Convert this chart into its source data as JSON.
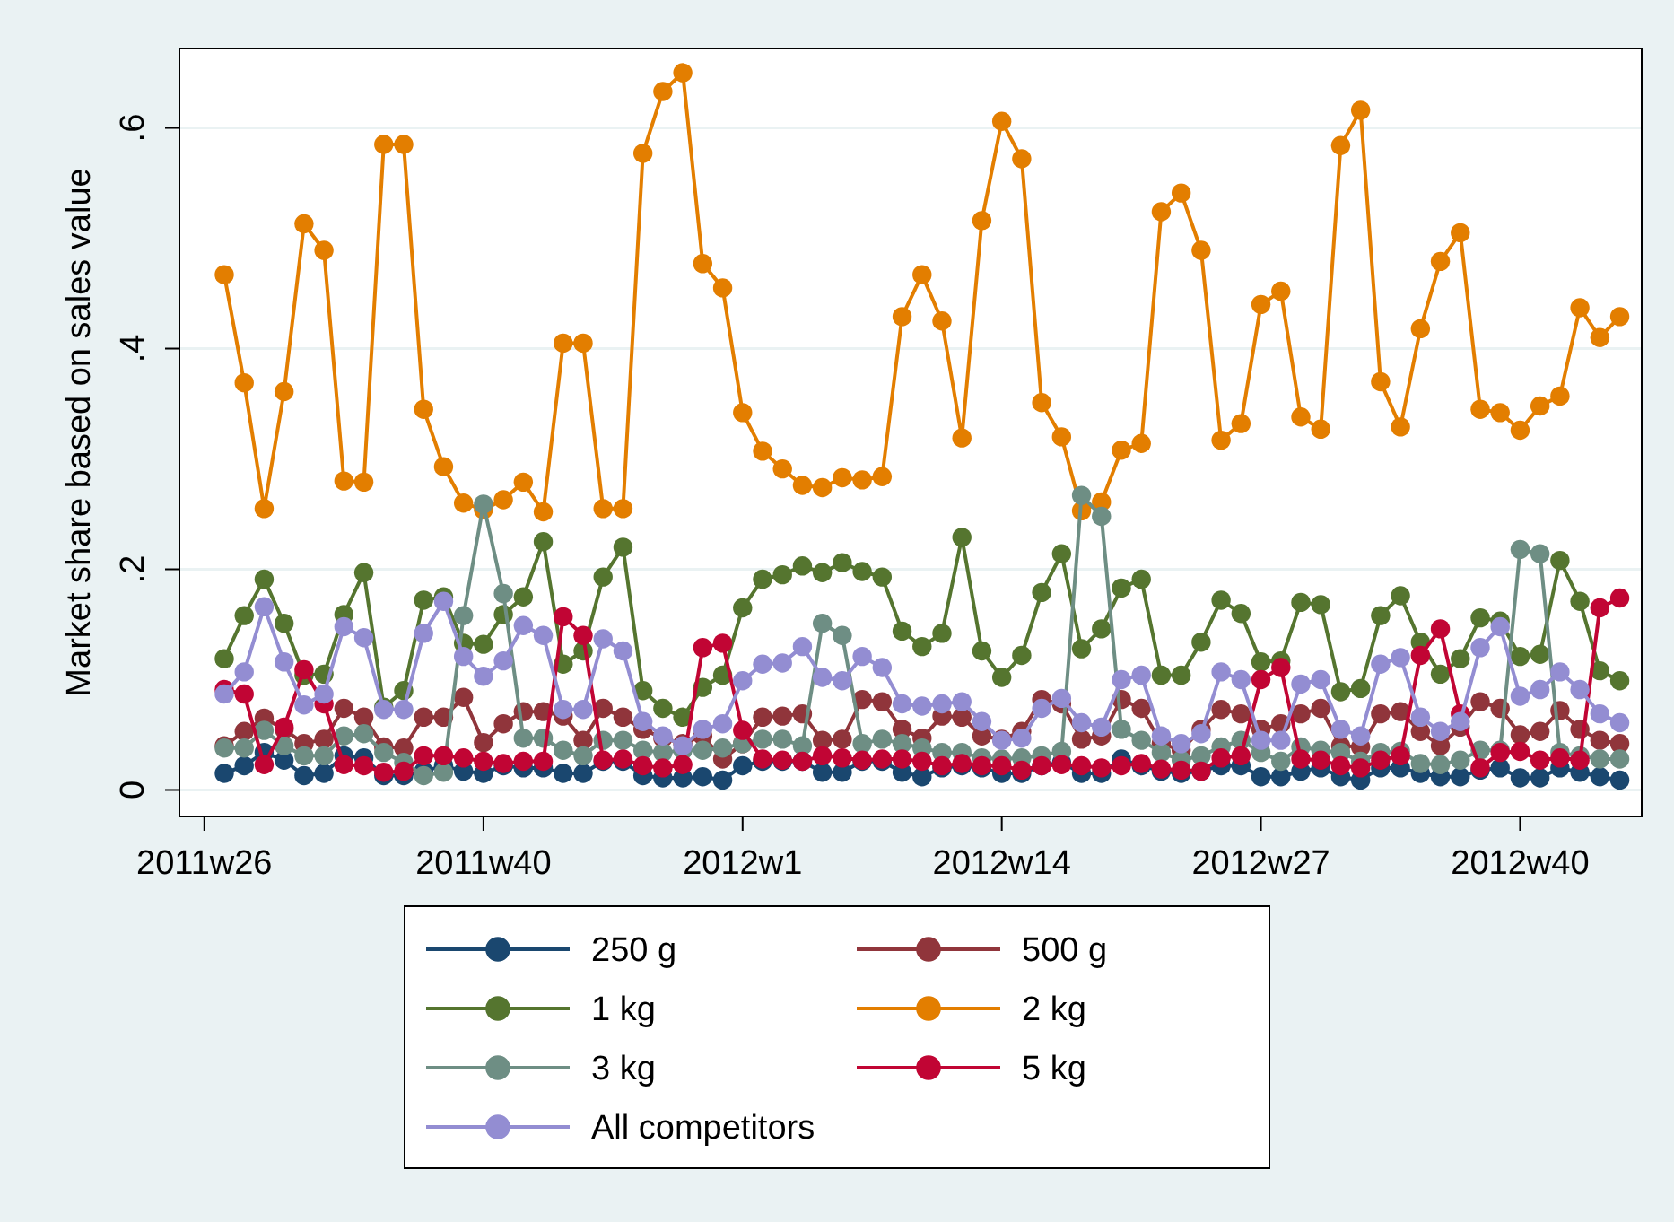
{
  "chart_data": {
    "type": "line",
    "ylabel": "Market share based on sales value",
    "marker": "circle",
    "grid": "y",
    "legend": "bottom",
    "categories": [
      "2011w26",
      null,
      null,
      null,
      null,
      null,
      null,
      null,
      null,
      null,
      null,
      null,
      null,
      null,
      "2011w40",
      null,
      null,
      null,
      null,
      null,
      null,
      null,
      null,
      null,
      null,
      null,
      null,
      "2012w1",
      null,
      null,
      null,
      null,
      null,
      null,
      null,
      null,
      null,
      null,
      null,
      null,
      "2012w14",
      null,
      null,
      null,
      null,
      null,
      null,
      null,
      null,
      null,
      null,
      null,
      null,
      "2012w27",
      null,
      null,
      null,
      null,
      null,
      null,
      null,
      null,
      null,
      null,
      null,
      null,
      "2012w40",
      null,
      null,
      null,
      null,
      null
    ],
    "ylim": [
      -0.024,
      0.672
    ],
    "yticks": [
      {
        "value": 0,
        "label": "0"
      },
      {
        "value": 0.2,
        "label": ".2"
      },
      {
        "value": 0.4,
        "label": ".4"
      },
      {
        "value": 0.6,
        "label": ".6"
      }
    ],
    "series": [
      {
        "name": "250 g",
        "color": "#1a476f",
        "values": [
          null,
          0.015,
          0.022,
          0.034,
          0.027,
          0.013,
          0.015,
          0.031,
          0.029,
          0.013,
          0.013,
          0.017,
          0.022,
          0.017,
          0.015,
          0.022,
          0.02,
          0.02,
          0.015,
          0.015,
          0.026,
          0.026,
          0.013,
          0.011,
          0.011,
          0.012,
          0.009,
          0.022,
          0.026,
          0.026,
          0.026,
          0.016,
          0.016,
          0.026,
          0.026,
          0.016,
          0.012,
          0.02,
          0.022,
          0.02,
          0.015,
          0.015,
          0.022,
          0.025,
          0.015,
          0.015,
          0.028,
          0.022,
          0.017,
          0.015,
          0.017,
          0.022,
          0.022,
          0.012,
          0.012,
          0.017,
          0.02,
          0.012,
          0.009,
          0.02,
          0.02,
          0.015,
          0.012,
          0.012,
          0.018,
          0.02,
          0.011,
          0.011,
          0.02,
          0.016,
          0.012,
          0.009
        ]
      },
      {
        "name": "500 g",
        "color": "#90353b",
        "values": [
          null,
          0.04,
          0.053,
          0.065,
          0.055,
          0.042,
          0.046,
          0.074,
          0.066,
          0.039,
          0.038,
          0.066,
          0.066,
          0.084,
          0.043,
          0.06,
          0.071,
          0.071,
          0.067,
          0.045,
          0.074,
          0.066,
          0.055,
          0.047,
          0.042,
          0.049,
          0.028,
          0.042,
          0.066,
          0.067,
          0.069,
          0.045,
          0.046,
          0.082,
          0.08,
          0.055,
          0.047,
          0.067,
          0.066,
          0.049,
          0.046,
          0.053,
          0.082,
          0.078,
          0.046,
          0.049,
          0.082,
          0.074,
          0.042,
          0.036,
          0.055,
          0.073,
          0.069,
          0.055,
          0.06,
          0.069,
          0.074,
          0.04,
          0.039,
          0.069,
          0.071,
          0.053,
          0.04,
          0.057,
          0.08,
          0.074,
          0.05,
          0.053,
          0.072,
          0.055,
          0.045,
          0.042
        ]
      },
      {
        "name": "1 kg",
        "color": "#55752f",
        "values": [
          null,
          0.119,
          0.158,
          0.191,
          0.151,
          0.104,
          0.105,
          0.159,
          0.197,
          0.075,
          0.09,
          0.172,
          0.175,
          0.133,
          0.132,
          0.159,
          0.175,
          0.225,
          0.114,
          0.126,
          0.193,
          0.22,
          0.09,
          0.074,
          0.066,
          0.093,
          0.104,
          0.165,
          0.191,
          0.195,
          0.203,
          0.197,
          0.206,
          0.198,
          0.193,
          0.144,
          0.13,
          0.142,
          0.229,
          0.126,
          0.102,
          0.122,
          0.179,
          0.214,
          0.128,
          0.146,
          0.183,
          0.191,
          0.104,
          0.104,
          0.134,
          0.172,
          0.16,
          0.116,
          0.117,
          0.17,
          0.168,
          0.089,
          0.092,
          0.158,
          0.176,
          0.134,
          0.105,
          0.119,
          0.156,
          0.153,
          0.121,
          0.123,
          0.208,
          0.171,
          0.108,
          0.099
        ]
      },
      {
        "name": "2 kg",
        "color": "#e37e00",
        "values": [
          null,
          0.467,
          0.369,
          0.255,
          0.361,
          0.513,
          0.489,
          0.28,
          0.279,
          0.585,
          0.585,
          0.345,
          0.293,
          0.26,
          0.254,
          0.263,
          0.279,
          0.252,
          0.405,
          0.405,
          0.255,
          0.255,
          0.577,
          0.633,
          0.65,
          0.477,
          0.455,
          0.342,
          0.307,
          0.291,
          0.276,
          0.274,
          0.283,
          0.281,
          0.284,
          0.429,
          0.467,
          0.425,
          0.319,
          0.516,
          0.606,
          0.572,
          0.351,
          0.32,
          0.253,
          0.261,
          0.308,
          0.314,
          0.524,
          0.541,
          0.489,
          0.317,
          0.332,
          0.44,
          0.452,
          0.338,
          0.327,
          0.584,
          0.616,
          0.37,
          0.329,
          0.418,
          0.479,
          0.505,
          0.345,
          0.342,
          0.326,
          0.348,
          0.357,
          0.437,
          0.41,
          0.429
        ]
      },
      {
        "name": "3 kg",
        "color": "#6e8e84",
        "values": [
          null,
          0.038,
          0.038,
          0.054,
          0.04,
          0.031,
          0.031,
          0.049,
          0.051,
          0.034,
          0.025,
          0.013,
          0.016,
          0.158,
          0.259,
          0.178,
          0.047,
          0.047,
          0.036,
          0.031,
          0.045,
          0.045,
          0.036,
          0.034,
          0.036,
          0.036,
          0.038,
          0.042,
          0.046,
          0.046,
          0.04,
          0.151,
          0.14,
          0.042,
          0.046,
          0.042,
          0.038,
          0.034,
          0.034,
          0.029,
          0.028,
          0.029,
          0.031,
          0.035,
          0.267,
          0.248,
          0.055,
          0.045,
          0.034,
          0.027,
          0.031,
          0.039,
          0.045,
          0.034,
          0.026,
          0.039,
          0.036,
          0.034,
          0.026,
          0.034,
          0.035,
          0.024,
          0.023,
          0.027,
          0.036,
          0.036,
          0.218,
          0.214,
          0.034,
          0.031,
          0.028,
          0.028
        ]
      },
      {
        "name": "5 kg",
        "color": "#c10534",
        "values": [
          null,
          0.091,
          0.087,
          0.023,
          0.057,
          0.109,
          0.078,
          0.023,
          0.022,
          0.016,
          0.017,
          0.031,
          0.031,
          0.029,
          0.026,
          0.024,
          0.026,
          0.026,
          0.157,
          0.14,
          0.027,
          0.028,
          0.022,
          0.02,
          0.023,
          0.129,
          0.133,
          0.054,
          0.028,
          0.027,
          0.026,
          0.031,
          0.029,
          0.027,
          0.028,
          0.028,
          0.026,
          0.022,
          0.024,
          0.022,
          0.022,
          0.018,
          0.022,
          0.023,
          0.022,
          0.02,
          0.022,
          0.024,
          0.019,
          0.018,
          0.017,
          0.029,
          0.031,
          0.1,
          0.111,
          0.028,
          0.027,
          0.022,
          0.02,
          0.027,
          0.031,
          0.122,
          0.146,
          0.069,
          0.02,
          0.034,
          0.035,
          0.027,
          0.029,
          0.027,
          0.165,
          0.174
        ]
      },
      {
        "name": "All competitors",
        "color": "#938dd2",
        "values": [
          null,
          0.087,
          0.107,
          0.166,
          0.116,
          0.077,
          0.087,
          0.148,
          0.138,
          0.073,
          0.073,
          0.142,
          0.171,
          0.121,
          0.103,
          0.117,
          0.149,
          0.14,
          0.073,
          0.073,
          0.137,
          0.126,
          0.062,
          0.049,
          0.04,
          0.055,
          0.06,
          0.099,
          0.114,
          0.115,
          0.13,
          0.102,
          0.099,
          0.121,
          0.111,
          0.078,
          0.076,
          0.078,
          0.08,
          0.062,
          0.045,
          0.047,
          0.074,
          0.083,
          0.061,
          0.057,
          0.1,
          0.104,
          0.049,
          0.042,
          0.051,
          0.107,
          0.1,
          0.045,
          0.045,
          0.096,
          0.1,
          0.055,
          0.049,
          0.114,
          0.12,
          0.066,
          0.053,
          0.062,
          0.129,
          0.148,
          0.085,
          0.091,
          0.107,
          0.091,
          0.069,
          0.061
        ]
      }
    ]
  }
}
